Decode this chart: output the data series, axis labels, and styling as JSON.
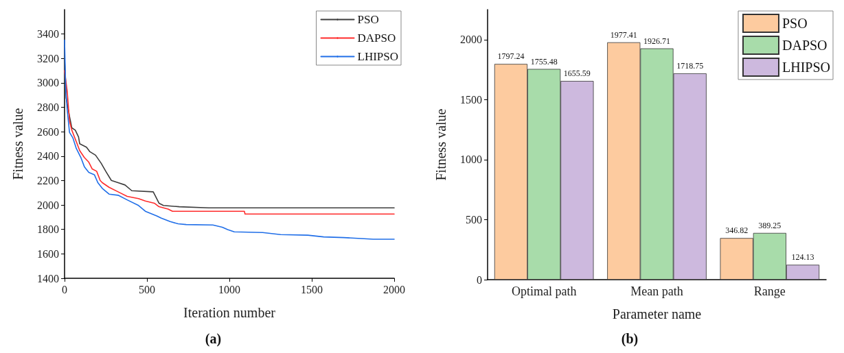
{
  "chart_data": [
    {
      "type": "line",
      "xlabel": "Iteration number",
      "ylabel": "Fitness value",
      "annotations": [
        "(a)"
      ],
      "xlim": [
        0,
        2000
      ],
      "xticks": [
        0,
        500,
        1000,
        1500,
        2000
      ],
      "ylim": [
        1400,
        3600
      ],
      "yticks": [
        1400,
        1600,
        1800,
        2000,
        2200,
        2400,
        2600,
        2800,
        3000,
        3200,
        3400
      ],
      "grid": false,
      "legend": "top right",
      "marker": "none",
      "line_style": "solid",
      "series": [
        {
          "name": "PSO",
          "color": "#3c3c3c",
          "x": [
            0,
            10,
            30,
            44,
            65,
            85,
            92,
            133,
            154,
            188,
            222,
            250,
            284,
            325,
            367,
            408,
            538,
            552,
            573,
            600,
            696,
            875,
            2000
          ],
          "values": [
            3200,
            2876,
            2726,
            2632,
            2613,
            2557,
            2501,
            2473,
            2436,
            2408,
            2342,
            2276,
            2201,
            2183,
            2164,
            2117,
            2108,
            2071,
            2015,
            1996,
            1986,
            1977,
            1977
          ]
        },
        {
          "name": "DAPSO",
          "color": "#ff2a2a",
          "x": [
            0,
            16,
            30,
            44,
            71,
            92,
            120,
            147,
            168,
            195,
            216,
            229,
            270,
            325,
            380,
            449,
            490,
            545,
            573,
            628,
            655,
            900,
            1091,
            1095,
            2000
          ],
          "values": [
            3100,
            2932,
            2688,
            2613,
            2520,
            2445,
            2389,
            2351,
            2295,
            2276,
            2201,
            2183,
            2145,
            2108,
            2071,
            2052,
            2033,
            2015,
            1986,
            1967,
            1949,
            1949,
            1949,
            1926,
            1926
          ]
        },
        {
          "name": "LHIPSO",
          "color": "#1f6ee8",
          "x": [
            0,
            7,
            16,
            30,
            51,
            71,
            99,
            120,
            147,
            181,
            202,
            229,
            270,
            325,
            380,
            449,
            490,
            559,
            587,
            641,
            689,
            738,
            900,
            957,
            990,
            1030,
            1202,
            1311,
            1476,
            1572,
            1695,
            1873,
            2000
          ],
          "values": [
            3350,
            2951,
            2782,
            2595,
            2548,
            2464,
            2389,
            2314,
            2267,
            2248,
            2183,
            2136,
            2089,
            2080,
            2042,
            1996,
            1949,
            1911,
            1893,
            1864,
            1846,
            1840,
            1836,
            1818,
            1799,
            1780,
            1775,
            1758,
            1753,
            1739,
            1733,
            1720,
            1720
          ]
        }
      ]
    },
    {
      "type": "bar",
      "xlabel": "Parameter name",
      "ylabel": "Fitness value",
      "annotations": [
        "(b)"
      ],
      "categories": [
        "Optimal path",
        "Mean path",
        "Range"
      ],
      "ylim": [
        0,
        2250
      ],
      "yticks": [
        0,
        500,
        1000,
        1500,
        2000
      ],
      "grid": false,
      "legend": "top right",
      "data_labels": true,
      "series": [
        {
          "name": "PSO",
          "color": "#fdcb9f",
          "values": [
            1797.24,
            1977.41,
            346.82
          ]
        },
        {
          "name": "DAPSO",
          "color": "#a8dcaa",
          "values": [
            1755.48,
            1926.71,
            389.25
          ]
        },
        {
          "name": "LHIPSO",
          "color": "#cdb9de",
          "values": [
            1655.59,
            1718.75,
            124.13
          ]
        }
      ]
    }
  ]
}
